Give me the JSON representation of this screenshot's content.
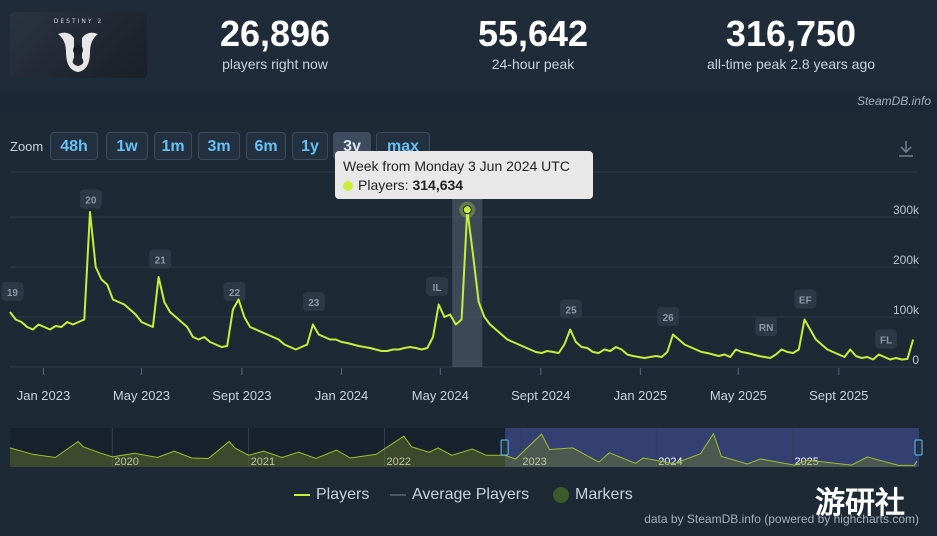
{
  "header": {
    "logo_text": "DESTINY 2",
    "stats": [
      {
        "value": "26,896",
        "label": "players right now"
      },
      {
        "value": "55,642",
        "label": "24-hour peak"
      },
      {
        "value": "316,750",
        "label": "all-time peak 2.8 years ago"
      }
    ],
    "credit": "SteamDB.info"
  },
  "zoom": {
    "label": "Zoom",
    "buttons": [
      "48h",
      "1w",
      "1m",
      "3m",
      "6m",
      "1y",
      "3y",
      "max"
    ],
    "selected": "3y"
  },
  "tooltip": {
    "title": "Week from Monday 3 Jun 2024 UTC",
    "series_label": "Players:",
    "value": "314,634"
  },
  "legend": {
    "players": "Players",
    "average": "Average Players",
    "markers": "Markers"
  },
  "credit_bottom": "data by SteamDB.info (powered by highcharts.com)",
  "watermark": "游研社",
  "colors": {
    "players_line": "#c6ee3a",
    "background": "#1b2838",
    "accent_link": "#67c1f5",
    "navigator_range": "#3d4a8a"
  },
  "chart_data": {
    "type": "line",
    "series": [
      {
        "name": "Players",
        "points": [
          [
            "2022-11-21",
            110000
          ],
          [
            "2022-11-28",
            95000
          ],
          [
            "2022-12-05",
            90000
          ],
          [
            "2022-12-12",
            80000
          ],
          [
            "2022-12-19",
            75000
          ],
          [
            "2022-12-26",
            85000
          ],
          [
            "2023-01-02",
            80000
          ],
          [
            "2023-01-09",
            75000
          ],
          [
            "2023-01-16",
            82000
          ],
          [
            "2023-01-23",
            80000
          ],
          [
            "2023-01-30",
            90000
          ],
          [
            "2023-02-06",
            85000
          ],
          [
            "2023-02-13",
            90000
          ],
          [
            "2023-02-20",
            95000
          ],
          [
            "2023-02-27",
            310000
          ],
          [
            "2023-03-06",
            200000
          ],
          [
            "2023-03-13",
            175000
          ],
          [
            "2023-03-20",
            165000
          ],
          [
            "2023-03-27",
            135000
          ],
          [
            "2023-04-03",
            130000
          ],
          [
            "2023-04-10",
            125000
          ],
          [
            "2023-04-17",
            115000
          ],
          [
            "2023-04-24",
            105000
          ],
          [
            "2023-05-01",
            90000
          ],
          [
            "2023-05-08",
            85000
          ],
          [
            "2023-05-15",
            80000
          ],
          [
            "2023-05-22",
            180000
          ],
          [
            "2023-05-29",
            130000
          ],
          [
            "2023-06-05",
            110000
          ],
          [
            "2023-06-12",
            100000
          ],
          [
            "2023-06-19",
            90000
          ],
          [
            "2023-06-26",
            80000
          ],
          [
            "2023-07-03",
            60000
          ],
          [
            "2023-07-10",
            55000
          ],
          [
            "2023-07-17",
            60000
          ],
          [
            "2023-07-24",
            50000
          ],
          [
            "2023-07-31",
            45000
          ],
          [
            "2023-08-07",
            40000
          ],
          [
            "2023-08-14",
            42000
          ],
          [
            "2023-08-21",
            115000
          ],
          [
            "2023-08-28",
            135000
          ],
          [
            "2023-09-04",
            100000
          ],
          [
            "2023-09-11",
            80000
          ],
          [
            "2023-09-18",
            75000
          ],
          [
            "2023-09-25",
            70000
          ],
          [
            "2023-10-02",
            65000
          ],
          [
            "2023-10-09",
            60000
          ],
          [
            "2023-10-16",
            55000
          ],
          [
            "2023-10-23",
            45000
          ],
          [
            "2023-10-30",
            40000
          ],
          [
            "2023-11-06",
            35000
          ],
          [
            "2023-11-13",
            40000
          ],
          [
            "2023-11-20",
            45000
          ],
          [
            "2023-11-27",
            85000
          ],
          [
            "2023-12-04",
            65000
          ],
          [
            "2023-12-11",
            60000
          ],
          [
            "2023-12-18",
            55000
          ],
          [
            "2023-12-25",
            55000
          ],
          [
            "2024-01-01",
            50000
          ],
          [
            "2024-01-08",
            48000
          ],
          [
            "2024-01-15",
            45000
          ],
          [
            "2024-01-22",
            42000
          ],
          [
            "2024-01-29",
            40000
          ],
          [
            "2024-02-05",
            38000
          ],
          [
            "2024-02-12",
            35000
          ],
          [
            "2024-02-19",
            32000
          ],
          [
            "2024-02-26",
            32000
          ],
          [
            "2024-03-04",
            35000
          ],
          [
            "2024-03-11",
            35000
          ],
          [
            "2024-03-18",
            38000
          ],
          [
            "2024-03-25",
            40000
          ],
          [
            "2024-04-01",
            38000
          ],
          [
            "2024-04-08",
            35000
          ],
          [
            "2024-04-15",
            38000
          ],
          [
            "2024-04-22",
            60000
          ],
          [
            "2024-04-29",
            125000
          ],
          [
            "2024-05-06",
            100000
          ],
          [
            "2024-05-13",
            105000
          ],
          [
            "2024-05-20",
            85000
          ],
          [
            "2024-05-27",
            95000
          ],
          [
            "2024-06-03",
            314634
          ],
          [
            "2024-06-10",
            225000
          ],
          [
            "2024-06-17",
            130000
          ],
          [
            "2024-06-24",
            100000
          ],
          [
            "2024-07-01",
            85000
          ],
          [
            "2024-07-08",
            75000
          ],
          [
            "2024-07-15",
            65000
          ],
          [
            "2024-07-22",
            55000
          ],
          [
            "2024-07-29",
            50000
          ],
          [
            "2024-08-05",
            45000
          ],
          [
            "2024-08-12",
            40000
          ],
          [
            "2024-08-19",
            35000
          ],
          [
            "2024-08-26",
            30000
          ],
          [
            "2024-09-02",
            28000
          ],
          [
            "2024-09-09",
            32000
          ],
          [
            "2024-09-16",
            30000
          ],
          [
            "2024-09-23",
            28000
          ],
          [
            "2024-09-30",
            45000
          ],
          [
            "2024-10-07",
            75000
          ],
          [
            "2024-10-14",
            50000
          ],
          [
            "2024-10-21",
            40000
          ],
          [
            "2024-10-28",
            38000
          ],
          [
            "2024-11-04",
            30000
          ],
          [
            "2024-11-11",
            28000
          ],
          [
            "2024-11-18",
            35000
          ],
          [
            "2024-11-25",
            32000
          ],
          [
            "2024-12-02",
            40000
          ],
          [
            "2024-12-09",
            35000
          ],
          [
            "2024-12-16",
            25000
          ],
          [
            "2024-12-23",
            22000
          ],
          [
            "2024-12-30",
            20000
          ],
          [
            "2025-01-06",
            18000
          ],
          [
            "2025-01-13",
            20000
          ],
          [
            "2025-01-20",
            22000
          ],
          [
            "2025-01-27",
            20000
          ],
          [
            "2025-02-03",
            30000
          ],
          [
            "2025-02-10",
            65000
          ],
          [
            "2025-02-17",
            55000
          ],
          [
            "2025-02-24",
            45000
          ],
          [
            "2025-03-03",
            40000
          ],
          [
            "2025-03-10",
            35000
          ],
          [
            "2025-03-17",
            30000
          ],
          [
            "2025-03-24",
            28000
          ],
          [
            "2025-03-31",
            25000
          ],
          [
            "2025-04-07",
            22000
          ],
          [
            "2025-04-14",
            25000
          ],
          [
            "2025-04-21",
            20000
          ],
          [
            "2025-04-28",
            35000
          ],
          [
            "2025-05-05",
            30000
          ],
          [
            "2025-05-12",
            28000
          ],
          [
            "2025-05-19",
            25000
          ],
          [
            "2025-05-26",
            22000
          ],
          [
            "2025-06-02",
            20000
          ],
          [
            "2025-06-09",
            18000
          ],
          [
            "2025-06-16",
            25000
          ],
          [
            "2025-06-23",
            35000
          ],
          [
            "2025-06-30",
            30000
          ],
          [
            "2025-07-07",
            28000
          ],
          [
            "2025-07-14",
            35000
          ],
          [
            "2025-07-21",
            95000
          ],
          [
            "2025-07-28",
            75000
          ],
          [
            "2025-08-04",
            55000
          ],
          [
            "2025-08-11",
            45000
          ],
          [
            "2025-08-18",
            35000
          ],
          [
            "2025-08-25",
            30000
          ],
          [
            "2025-09-01",
            25000
          ],
          [
            "2025-09-08",
            20000
          ],
          [
            "2025-09-15",
            35000
          ],
          [
            "2025-09-22",
            22000
          ],
          [
            "2025-09-29",
            18000
          ],
          [
            "2025-10-06",
            20000
          ],
          [
            "2025-10-13",
            15000
          ],
          [
            "2025-10-20",
            25000
          ],
          [
            "2025-10-27",
            20000
          ],
          [
            "2025-11-03",
            15000
          ],
          [
            "2025-11-10",
            18000
          ],
          [
            "2025-11-17",
            15000
          ],
          [
            "2025-11-24",
            16000
          ],
          [
            "2025-12-01",
            55000
          ]
        ]
      }
    ],
    "x_tick_labels": [
      "Jan 2023",
      "May 2023",
      "Sept 2023",
      "Jan 2024",
      "May 2024",
      "Sept 2024",
      "Jan 2025",
      "May 2025",
      "Sept 2025"
    ],
    "x_tick_dates": [
      "2023-01-01",
      "2023-05-01",
      "2023-09-01",
      "2024-01-01",
      "2024-05-01",
      "2024-09-01",
      "2025-01-01",
      "2025-05-01",
      "2025-09-01"
    ],
    "xlim": [
      "2022-11-21",
      "2025-12-07"
    ],
    "y_tick_labels": [
      "0",
      "100k",
      "200k",
      "300k"
    ],
    "y_tick_values": [
      0,
      100000,
      200000,
      300000
    ],
    "ylim": [
      0,
      390000
    ],
    "grid": true,
    "markers": [
      {
        "label": "19",
        "date": "2022-11-24",
        "y": 150000
      },
      {
        "label": "20",
        "date": "2023-02-28",
        "y": 335000
      },
      {
        "label": "21",
        "date": "2023-05-24",
        "y": 215000
      },
      {
        "label": "22",
        "date": "2023-08-23",
        "y": 150000
      },
      {
        "label": "23",
        "date": "2023-11-28",
        "y": 130000
      },
      {
        "label": "IL",
        "date": "2024-04-27",
        "y": 160000
      },
      {
        "label": "25",
        "date": "2024-10-08",
        "y": 115000
      },
      {
        "label": "26",
        "date": "2025-02-04",
        "y": 100000
      },
      {
        "label": "RN",
        "date": "2025-06-04",
        "y": 80000
      },
      {
        "label": "EF",
        "date": "2025-07-22",
        "y": 135000
      },
      {
        "label": "FL",
        "date": "2025-10-29",
        "y": 55000
      }
    ],
    "highlight": {
      "date": "2024-06-03",
      "value": 314634
    },
    "navigator": {
      "year_labels": [
        "2020",
        "2021",
        "2022",
        "2023",
        "2024",
        "2025"
      ],
      "year_dates": [
        "2020-01-01",
        "2021-01-01",
        "2022-01-01",
        "2023-01-01",
        "2024-01-01",
        "2025-01-01"
      ],
      "range": [
        "2019-04-01",
        "2025-12-07"
      ],
      "selected_range": [
        "2022-11-21",
        "2025-12-07"
      ],
      "points": [
        [
          "2019-04-01",
          180000
        ],
        [
          "2019-06-01",
          120000
        ],
        [
          "2019-08-01",
          90000
        ],
        [
          "2019-10-01",
          240000
        ],
        [
          "2019-10-15",
          190000
        ],
        [
          "2019-12-01",
          130000
        ],
        [
          "2020-01-01",
          95000
        ],
        [
          "2020-03-01",
          130000
        ],
        [
          "2020-05-01",
          90000
        ],
        [
          "2020-06-15",
          150000
        ],
        [
          "2020-08-01",
          85000
        ],
        [
          "2020-09-15",
          80000
        ],
        [
          "2020-11-10",
          240000
        ],
        [
          "2020-11-25",
          180000
        ],
        [
          "2021-01-01",
          110000
        ],
        [
          "2021-02-10",
          150000
        ],
        [
          "2021-04-01",
          90000
        ],
        [
          "2021-05-15",
          140000
        ],
        [
          "2021-07-01",
          80000
        ],
        [
          "2021-08-25",
          160000
        ],
        [
          "2021-10-01",
          85000
        ],
        [
          "2021-12-10",
          120000
        ],
        [
          "2022-02-22",
          290000
        ],
        [
          "2022-03-15",
          190000
        ],
        [
          "2022-05-01",
          140000
        ],
        [
          "2022-05-25",
          180000
        ],
        [
          "2022-07-01",
          110000
        ],
        [
          "2022-08-25",
          170000
        ],
        [
          "2022-10-01",
          110000
        ],
        [
          "2022-11-21",
          110000
        ],
        [
          "2022-12-19",
          75000
        ],
        [
          "2023-02-27",
          310000
        ],
        [
          "2023-03-20",
          165000
        ],
        [
          "2023-05-22",
          180000
        ],
        [
          "2023-07-31",
          45000
        ],
        [
          "2023-08-28",
          135000
        ],
        [
          "2023-11-06",
          35000
        ],
        [
          "2023-11-27",
          85000
        ],
        [
          "2024-02-19",
          32000
        ],
        [
          "2024-04-29",
          125000
        ],
        [
          "2024-06-03",
          314634
        ],
        [
          "2024-06-24",
          100000
        ],
        [
          "2024-09-02",
          28000
        ],
        [
          "2024-10-07",
          75000
        ],
        [
          "2025-01-06",
          18000
        ],
        [
          "2025-02-10",
          65000
        ],
        [
          "2025-06-09",
          18000
        ],
        [
          "2025-07-21",
          95000
        ],
        [
          "2025-10-13",
          15000
        ],
        [
          "2025-11-24",
          16000
        ],
        [
          "2025-12-01",
          55000
        ]
      ]
    }
  }
}
